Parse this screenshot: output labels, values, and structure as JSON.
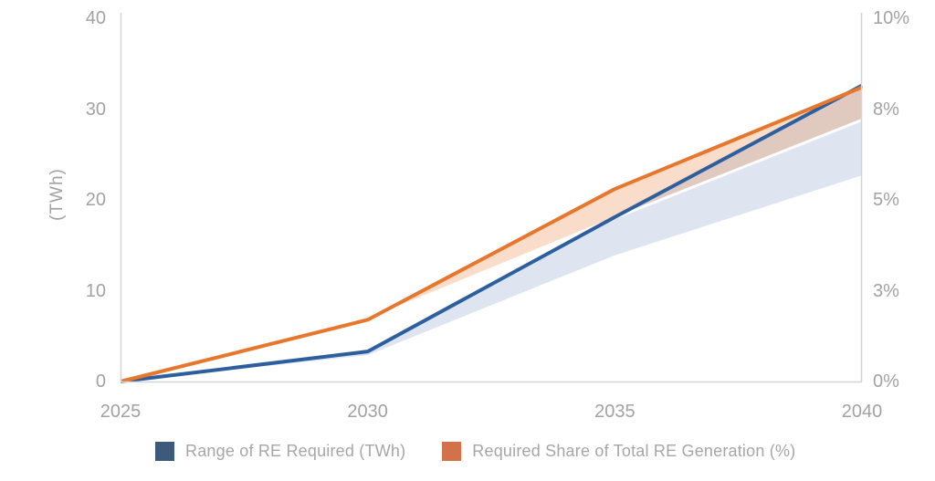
{
  "chart_data": {
    "type": "area",
    "title": "",
    "x": [
      2025,
      2030,
      2035,
      2040
    ],
    "x_axis": {
      "tick_labels": [
        "2025",
        "2030",
        "2035",
        "2040"
      ]
    },
    "left_axis": {
      "label": "(TWh)",
      "min": 0,
      "max": 40,
      "tick_values": [
        0,
        10,
        20,
        30,
        40
      ],
      "tick_labels": [
        "0",
        "10",
        "20",
        "30",
        "40"
      ]
    },
    "right_axis": {
      "min": 0,
      "max": 10,
      "tick_values": [
        0,
        2.5,
        5,
        7.5,
        10
      ],
      "tick_labels": [
        "0%",
        "3%",
        "5%",
        "8%",
        "10%"
      ]
    },
    "series": [
      {
        "name": "Range of RE Required (TWh)",
        "axis": "left",
        "upper": [
          0,
          3.3,
          18.1,
          32.6
        ],
        "lower": [
          0,
          2.9,
          13.9,
          22.7
        ],
        "line_color": "#2d5f9e",
        "fill_color": "#dee5f0"
      },
      {
        "name": "Required Share of Total RE Generation (%)",
        "axis": "right",
        "upper": [
          0,
          1.7,
          5.3,
          8.1
        ],
        "lower": [
          0,
          1.7,
          4.5,
          7.2
        ],
        "line_color": "#e6772d",
        "fill_color": "rgba(230,120,45,0.25)"
      }
    ],
    "legend": [
      {
        "label": "Range of RE Required (TWh)",
        "color": "#3d5a7a"
      },
      {
        "label": "Required Share of Total RE Generation (%)",
        "color": "#d2714a"
      }
    ],
    "grid": "off",
    "legend_position": "bottom-center",
    "axis_line_color": "#d4d4d4"
  }
}
